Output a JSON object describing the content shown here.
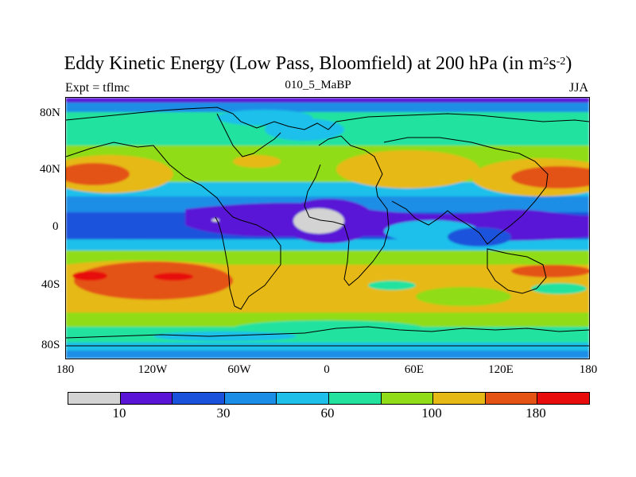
{
  "title": {
    "main": "Eddy Kinetic Energy (Low Pass, Bloomfield) at 200 hPa (in m",
    "sup1": "2",
    "mid": "s",
    "sup2": "-2",
    "end": ")"
  },
  "subtitle": "010_5_MaBP",
  "left_label": "Expt = tflmc",
  "right_label": "JJA",
  "y_ticks": [
    "80N",
    "40N",
    "0",
    "40S",
    "80S"
  ],
  "x_ticks": [
    "180",
    "120W",
    "60W",
    "0",
    "60E",
    "120E",
    "180"
  ],
  "colorbar": {
    "colors": [
      "#d3d3d3",
      "#5a14d6",
      "#1b52dc",
      "#1a8ee6",
      "#1ec0ea",
      "#23e2a0",
      "#90dc18",
      "#e6b914",
      "#e45314",
      "#e80c0c"
    ],
    "labels": [
      "10",
      "30",
      "60",
      "100",
      "180"
    ]
  },
  "map_colors": {
    "gray": "#d3d3d3",
    "purple": "#5a14d6",
    "darkblue": "#1b52dc",
    "blue": "#1a8ee6",
    "cyan": "#1ec0ea",
    "teal": "#23e2a0",
    "green": "#90dc18",
    "yellow": "#e6b914",
    "orange": "#e45314",
    "red": "#e80c0c"
  }
}
